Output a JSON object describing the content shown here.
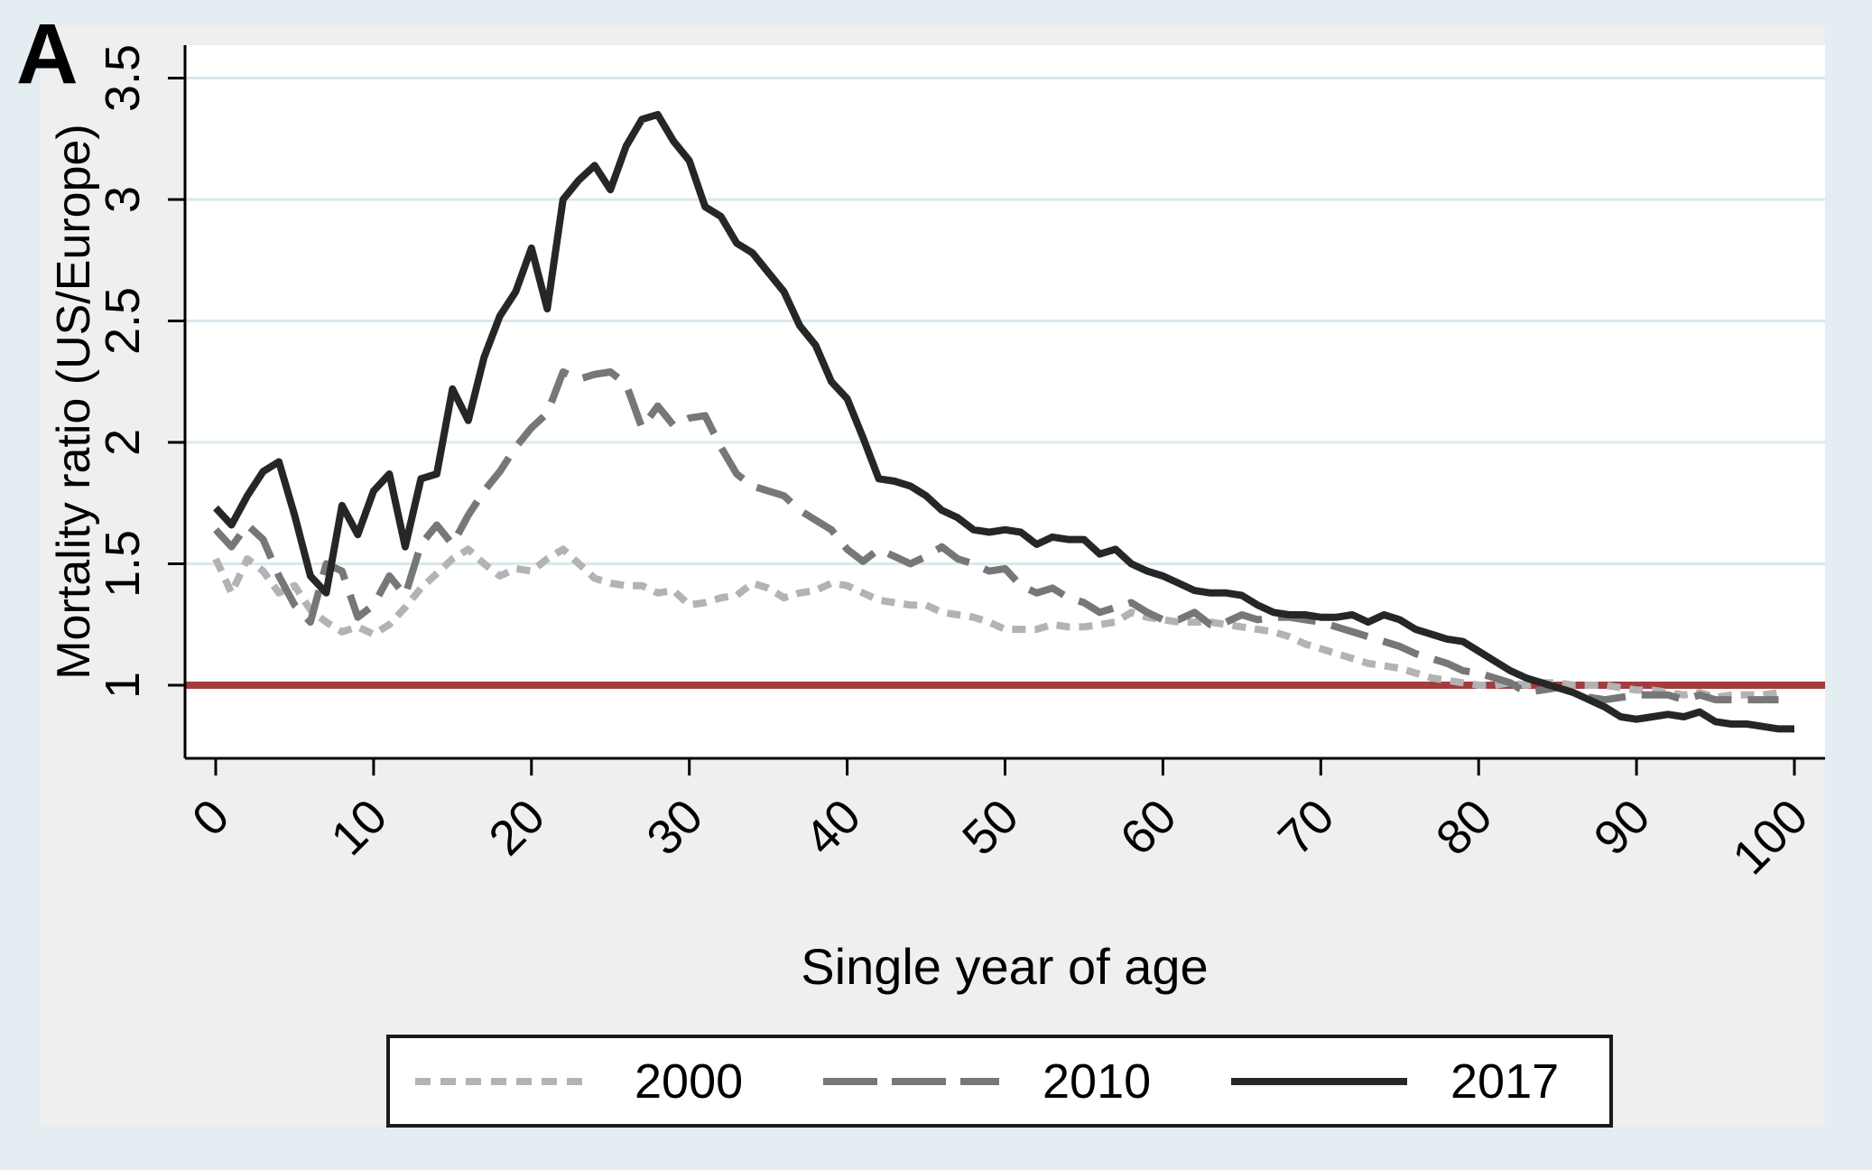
{
  "figure": {
    "panel_label": "A"
  },
  "axes": {
    "y": {
      "title": "Mortality ratio (US/Europe)",
      "ticks": [
        "1",
        "1.5",
        "2",
        "2.5",
        "3",
        "3.5"
      ]
    },
    "x": {
      "title": "Single year of age",
      "ticks": [
        "0",
        "10",
        "20",
        "30",
        "40",
        "50",
        "60",
        "70",
        "80",
        "90",
        "100"
      ]
    }
  },
  "legend": {
    "entries": [
      "2000",
      "2010",
      "2017"
    ]
  },
  "colors": {
    "outer_background": "#e4edf1",
    "figure_background": "#efefef",
    "plot_background": "#ffffff",
    "gridline": "#d9e8ee",
    "axis": "#000000",
    "reference_line": "#a43b3d",
    "series_2000": "#b3b3b3",
    "series_2010": "#777777",
    "series_2017": "#262626",
    "legend_border": "#1a1a1a",
    "legend_fill": "#ffffff"
  },
  "chart_data": {
    "type": "line",
    "title": "",
    "xlabel": "Single year of age",
    "ylabel": "Mortality ratio (US/Europe)",
    "x_range": [
      0,
      100
    ],
    "y_view_range": [
      0.7,
      3.64
    ],
    "y_axis_ticks": [
      1,
      1.5,
      2,
      2.5,
      3,
      3.5
    ],
    "x_axis_ticks": [
      0,
      10,
      20,
      30,
      40,
      50,
      60,
      70,
      80,
      90,
      100
    ],
    "grid": "horizontal",
    "legend_position": "bottom",
    "reference_line": {
      "y": 1
    },
    "ages": {
      "start": 0,
      "step": 1
    },
    "series": [
      {
        "name": "2000",
        "style": "short-dash",
        "dash": "15 10",
        "legend_dash": "17 11",
        "values": [
          1.52,
          1.38,
          1.52,
          1.47,
          1.38,
          1.41,
          1.31,
          1.26,
          1.22,
          1.24,
          1.21,
          1.25,
          1.32,
          1.4,
          1.46,
          1.52,
          1.56,
          1.5,
          1.45,
          1.48,
          1.47,
          1.52,
          1.56,
          1.5,
          1.44,
          1.42,
          1.41,
          1.41,
          1.38,
          1.39,
          1.33,
          1.34,
          1.36,
          1.37,
          1.42,
          1.4,
          1.36,
          1.38,
          1.39,
          1.42,
          1.41,
          1.38,
          1.35,
          1.34,
          1.33,
          1.33,
          1.3,
          1.29,
          1.28,
          1.26,
          1.23,
          1.23,
          1.23,
          1.25,
          1.24,
          1.24,
          1.25,
          1.26,
          1.3,
          1.28,
          1.27,
          1.26,
          1.26,
          1.26,
          1.25,
          1.24,
          1.23,
          1.22,
          1.2,
          1.17,
          1.15,
          1.13,
          1.11,
          1.09,
          1.08,
          1.07,
          1.05,
          1.03,
          1.02,
          1.01,
          1.0,
          1.0,
          1.01,
          1.0,
          1.01,
          1.01,
          1.0,
          1.0,
          1.0,
          0.99,
          0.98,
          0.98,
          0.97,
          0.96,
          0.97,
          0.95,
          0.96,
          0.96,
          0.96,
          0.97
        ]
      },
      {
        "name": "2010",
        "style": "long-dash",
        "dash": "42 18",
        "legend_dash": "60 16",
        "values": [
          1.64,
          1.57,
          1.66,
          1.6,
          1.45,
          1.33,
          1.26,
          1.5,
          1.47,
          1.28,
          1.33,
          1.45,
          1.37,
          1.58,
          1.66,
          1.58,
          1.7,
          1.8,
          1.88,
          1.98,
          2.06,
          2.12,
          2.29,
          2.26,
          2.28,
          2.29,
          2.24,
          2.06,
          2.15,
          2.07,
          2.1,
          2.11,
          1.98,
          1.87,
          1.82,
          1.8,
          1.78,
          1.72,
          1.68,
          1.64,
          1.56,
          1.51,
          1.56,
          1.53,
          1.5,
          1.53,
          1.57,
          1.52,
          1.5,
          1.47,
          1.48,
          1.41,
          1.38,
          1.4,
          1.36,
          1.34,
          1.3,
          1.32,
          1.34,
          1.3,
          1.27,
          1.27,
          1.3,
          1.25,
          1.26,
          1.29,
          1.27,
          1.28,
          1.28,
          1.27,
          1.26,
          1.24,
          1.22,
          1.2,
          1.18,
          1.16,
          1.13,
          1.11,
          1.09,
          1.06,
          1.05,
          1.03,
          1.01,
          0.97,
          0.98,
          0.99,
          0.97,
          0.95,
          0.94,
          0.95,
          0.96,
          0.96,
          0.96,
          0.94,
          0.96,
          0.94,
          0.94,
          0.94,
          0.94,
          0.94
        ]
      },
      {
        "name": "2017",
        "style": "solid",
        "dash": "",
        "legend_dash": "",
        "values": [
          1.73,
          1.66,
          1.78,
          1.88,
          1.92,
          1.7,
          1.45,
          1.38,
          1.74,
          1.62,
          1.8,
          1.87,
          1.57,
          1.85,
          1.87,
          2.22,
          2.09,
          2.35,
          2.52,
          2.62,
          2.8,
          2.55,
          3.0,
          3.08,
          3.14,
          3.04,
          3.22,
          3.33,
          3.35,
          3.24,
          3.16,
          2.97,
          2.93,
          2.82,
          2.78,
          2.7,
          2.62,
          2.48,
          2.4,
          2.25,
          2.18,
          2.02,
          1.85,
          1.84,
          1.82,
          1.78,
          1.72,
          1.69,
          1.64,
          1.63,
          1.64,
          1.63,
          1.58,
          1.61,
          1.6,
          1.6,
          1.54,
          1.56,
          1.5,
          1.47,
          1.45,
          1.42,
          1.39,
          1.38,
          1.38,
          1.37,
          1.33,
          1.3,
          1.29,
          1.29,
          1.28,
          1.28,
          1.29,
          1.26,
          1.29,
          1.27,
          1.23,
          1.21,
          1.19,
          1.18,
          1.14,
          1.1,
          1.06,
          1.03,
          1.01,
          0.99,
          0.97,
          0.94,
          0.91,
          0.87,
          0.86,
          0.87,
          0.88,
          0.87,
          0.89,
          0.85,
          0.84,
          0.84,
          0.83,
          0.82,
          0.82
        ]
      }
    ]
  }
}
